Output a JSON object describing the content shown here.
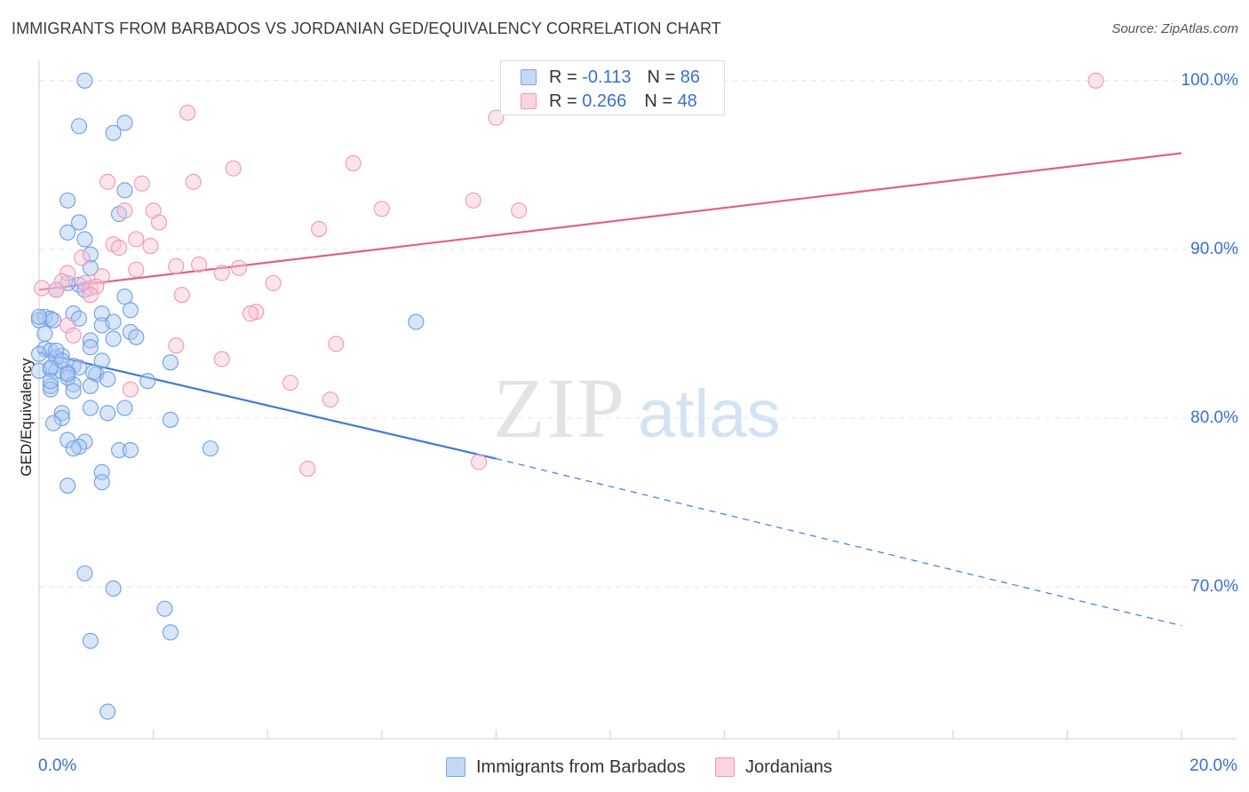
{
  "header": {
    "title": "IMMIGRANTS FROM BARBADOS VS JORDANIAN GED/EQUIVALENCY CORRELATION CHART",
    "source": "Source: ZipAtlas.com"
  },
  "watermark": {
    "zip": "ZIP",
    "atlas": "atlas"
  },
  "legend": {
    "r_label": "R =",
    "n_label": "N =",
    "series": [
      {
        "r": "-0.113",
        "n": "86",
        "color": "#7aa6e8",
        "fill": "#c5d9f6"
      },
      {
        "r": "0.266",
        "n": "48",
        "color": "#ee9ab8",
        "fill": "#fbd3e1"
      }
    ]
  },
  "chart_data": {
    "type": "scatter",
    "title": "IMMIGRANTS FROM BARBADOS VS JORDANIAN GED/EQUIVALENCY CORRELATION CHART",
    "xlabel": "",
    "ylabel": "GED/Equivalency",
    "xlim": [
      0,
      20
    ],
    "ylim": [
      61,
      101.2
    ],
    "x_tick_labels": [
      "0.0%",
      "20.0%"
    ],
    "y_ticks": [
      70,
      80,
      90,
      100
    ],
    "y_tick_labels": [
      "70.0%",
      "80.0%",
      "90.0%",
      "100.0%"
    ],
    "grid": true,
    "legend_position": "top-center",
    "series": [
      {
        "name": "Immigrants from Barbados",
        "color": "#6d9ee6",
        "trend": {
          "x0": 0,
          "y0": 83.9,
          "x1": 8,
          "y1": 77.6,
          "dashed_to_x": 20,
          "dashed_to_y": 67.7,
          "color": "#3f7bd6"
        },
        "points": [
          [
            0.8,
            100.0
          ],
          [
            1.5,
            97.5
          ],
          [
            0.7,
            97.3
          ],
          [
            1.3,
            96.9
          ],
          [
            1.5,
            93.5
          ],
          [
            0.5,
            92.9
          ],
          [
            1.4,
            92.1
          ],
          [
            0.7,
            91.6
          ],
          [
            0.5,
            91.0
          ],
          [
            0.8,
            90.6
          ],
          [
            0.9,
            89.7
          ],
          [
            0.9,
            88.9
          ],
          [
            0.7,
            87.9
          ],
          [
            0.5,
            88.0
          ],
          [
            0.3,
            87.6
          ],
          [
            0.8,
            87.6
          ],
          [
            1.5,
            87.2
          ],
          [
            1.6,
            86.4
          ],
          [
            1.1,
            86.2
          ],
          [
            0.6,
            86.2
          ],
          [
            0.1,
            86.0
          ],
          [
            0.2,
            85.9
          ],
          [
            0.0,
            85.8
          ],
          [
            0.25,
            85.8
          ],
          [
            0.7,
            85.9
          ],
          [
            1.1,
            85.5
          ],
          [
            1.3,
            85.7
          ],
          [
            1.6,
            85.1
          ],
          [
            1.7,
            84.8
          ],
          [
            0.9,
            84.6
          ],
          [
            0.1,
            84.1
          ],
          [
            0.2,
            84.0
          ],
          [
            0.0,
            83.8
          ],
          [
            0.4,
            83.7
          ],
          [
            0.3,
            83.6
          ],
          [
            0.6,
            83.1
          ],
          [
            1.1,
            83.4
          ],
          [
            0.7,
            83.0
          ],
          [
            0.2,
            82.9
          ],
          [
            0.0,
            82.8
          ],
          [
            0.3,
            82.8
          ],
          [
            0.5,
            82.7
          ],
          [
            0.5,
            82.4
          ],
          [
            1.0,
            82.6
          ],
          [
            0.95,
            82.7
          ],
          [
            1.2,
            82.3
          ],
          [
            1.9,
            82.2
          ],
          [
            0.6,
            82.0
          ],
          [
            0.2,
            81.9
          ],
          [
            0.2,
            81.7
          ],
          [
            0.9,
            81.9
          ],
          [
            2.3,
            83.3
          ],
          [
            0.9,
            80.6
          ],
          [
            1.5,
            80.6
          ],
          [
            1.2,
            80.3
          ],
          [
            0.4,
            80.3
          ],
          [
            0.4,
            80.0
          ],
          [
            0.25,
            79.7
          ],
          [
            2.3,
            79.9
          ],
          [
            0.5,
            78.7
          ],
          [
            0.8,
            78.6
          ],
          [
            0.7,
            78.3
          ],
          [
            0.6,
            78.2
          ],
          [
            1.4,
            78.1
          ],
          [
            1.6,
            78.1
          ],
          [
            3.0,
            78.2
          ],
          [
            1.1,
            76.8
          ],
          [
            1.1,
            76.2
          ],
          [
            0.5,
            76.0
          ],
          [
            0.8,
            70.8
          ],
          [
            1.3,
            69.9
          ],
          [
            2.2,
            68.7
          ],
          [
            2.3,
            67.3
          ],
          [
            0.9,
            66.8
          ],
          [
            1.2,
            62.6
          ],
          [
            6.6,
            85.7
          ],
          [
            0.0,
            86.0
          ],
          [
            0.1,
            85.0
          ],
          [
            0.3,
            84.0
          ],
          [
            0.4,
            83.4
          ],
          [
            0.2,
            83.0
          ],
          [
            0.5,
            82.6
          ],
          [
            1.3,
            84.7
          ],
          [
            0.6,
            81.6
          ],
          [
            0.9,
            84.2
          ],
          [
            0.2,
            82.2
          ]
        ]
      },
      {
        "name": "Jordanians",
        "color": "#ef97b5",
        "trend": {
          "x0": 0,
          "y0": 87.6,
          "x1": 20,
          "y1": 95.7,
          "color": "#e0608c"
        },
        "points": [
          [
            18.5,
            100.0
          ],
          [
            2.6,
            98.1
          ],
          [
            8.0,
            97.8
          ],
          [
            5.5,
            95.1
          ],
          [
            3.4,
            94.8
          ],
          [
            1.2,
            94.0
          ],
          [
            1.8,
            93.9
          ],
          [
            2.7,
            94.0
          ],
          [
            6.0,
            92.4
          ],
          [
            7.6,
            92.9
          ],
          [
            8.4,
            92.3
          ],
          [
            1.5,
            92.3
          ],
          [
            2.0,
            92.3
          ],
          [
            2.1,
            91.6
          ],
          [
            4.9,
            91.2
          ],
          [
            1.7,
            90.6
          ],
          [
            1.3,
            90.3
          ],
          [
            1.4,
            90.1
          ],
          [
            1.95,
            90.2
          ],
          [
            0.75,
            89.5
          ],
          [
            2.4,
            89.0
          ],
          [
            2.8,
            89.1
          ],
          [
            3.5,
            88.9
          ],
          [
            1.7,
            88.8
          ],
          [
            3.2,
            88.6
          ],
          [
            0.5,
            88.6
          ],
          [
            1.1,
            88.4
          ],
          [
            0.4,
            88.1
          ],
          [
            0.8,
            88.0
          ],
          [
            4.1,
            88.0
          ],
          [
            0.9,
            87.7
          ],
          [
            1.0,
            87.8
          ],
          [
            0.05,
            87.7
          ],
          [
            0.3,
            87.6
          ],
          [
            0.9,
            87.3
          ],
          [
            2.5,
            87.3
          ],
          [
            3.8,
            86.3
          ],
          [
            3.7,
            86.2
          ],
          [
            0.5,
            85.5
          ],
          [
            0.6,
            84.9
          ],
          [
            5.2,
            84.4
          ],
          [
            2.4,
            84.3
          ],
          [
            3.2,
            83.5
          ],
          [
            4.4,
            82.1
          ],
          [
            1.6,
            81.7
          ],
          [
            5.1,
            81.1
          ],
          [
            4.7,
            77.0
          ],
          [
            7.7,
            77.4
          ]
        ]
      }
    ]
  },
  "bottom_legend": [
    "Immigrants from Barbados",
    "Jordanians"
  ]
}
